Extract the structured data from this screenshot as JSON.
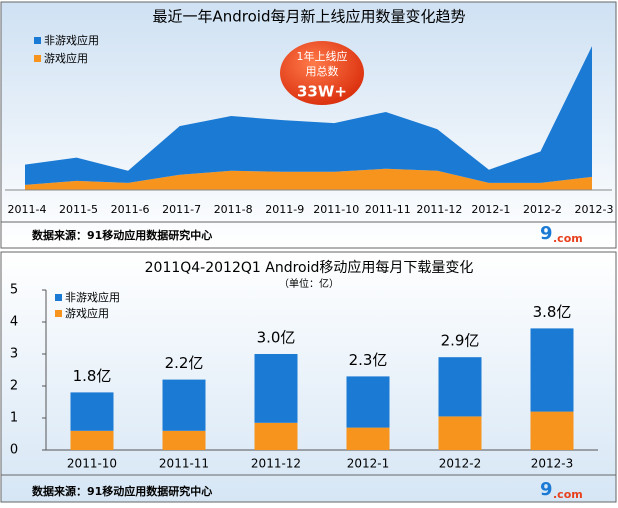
{
  "chart_data": [
    {
      "type": "area",
      "title": "最近一年Android每月新上线应用数量变化趋势",
      "categories": [
        "2011-4",
        "2011-5",
        "2011-6",
        "2011-7",
        "2011-8",
        "2011-9",
        "2011-10",
        "2011-11",
        "2011-12",
        "2012-1",
        "2012-2",
        "2012-3"
      ],
      "series": [
        {
          "name": "非游戏应用",
          "color": "#1a7ad4",
          "values": [
            20,
            23,
            12,
            48,
            54,
            51,
            48,
            56,
            41,
            13,
            31,
            129
          ]
        },
        {
          "name": "游戏应用",
          "color": "#f7941d",
          "values": [
            5,
            9,
            7,
            15,
            19,
            18,
            18,
            21,
            19,
            7,
            7,
            13
          ]
        }
      ],
      "ylim": [
        0,
        150
      ],
      "legend": "upper left",
      "annotation": {
        "lines": [
          "1年上线应",
          "用总数"
        ],
        "emphasis": "33W+"
      },
      "source": "数据来源：91移动应用数据研究中心",
      "logo": "9",
      "logo_suffix": ".com"
    },
    {
      "type": "bar",
      "title": "2011Q4-2012Q1 Android移动应用每月下载量变化",
      "subtitle": "（单位：亿）",
      "categories": [
        "2011-10",
        "2011-11",
        "2011-12",
        "2012-1",
        "2012-2",
        "2012-3"
      ],
      "series": [
        {
          "name": "非游戏应用",
          "color": "#1a7ad4",
          "values": [
            1.2,
            1.6,
            2.15,
            1.6,
            1.85,
            2.6
          ]
        },
        {
          "name": "游戏应用",
          "color": "#f7941d",
          "values": [
            0.6,
            0.6,
            0.85,
            0.7,
            1.05,
            1.2
          ]
        }
      ],
      "totals": [
        1.8,
        2.2,
        3.0,
        2.3,
        2.9,
        3.8
      ],
      "total_labels": [
        "1.8亿",
        "2.2亿",
        "3.0亿",
        "2.3亿",
        "2.9亿",
        "3.8亿"
      ],
      "ylim": [
        0,
        5
      ],
      "yticks": [
        0,
        1,
        2,
        3,
        4,
        5
      ],
      "legend": "upper left",
      "source": "数据来源：91移动应用数据研究中心",
      "logo": "9",
      "logo_suffix": ".com"
    }
  ]
}
